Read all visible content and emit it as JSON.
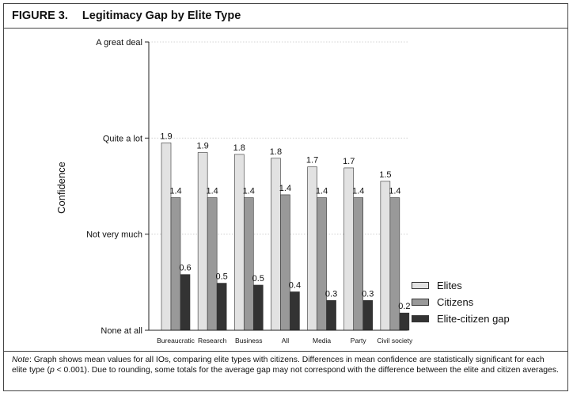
{
  "figure": {
    "label": "FIGURE 3.",
    "title": "Legitimacy Gap by Elite Type"
  },
  "chart_data": {
    "type": "bar",
    "title": "Legitimacy Gap by Elite Type",
    "xlabel": "",
    "ylabel": "Confidence",
    "ylim": [
      0,
      3
    ],
    "y_ticks": [
      {
        "value": 0,
        "label": "None at all"
      },
      {
        "value": 1,
        "label": "Not very much"
      },
      {
        "value": 2,
        "label": "Quite a lot"
      },
      {
        "value": 3,
        "label": "A great deal"
      }
    ],
    "categories": [
      "Bureaucratic",
      "Research",
      "Business",
      "All",
      "Media",
      "Party",
      "Civil society"
    ],
    "series": [
      {
        "name": "Elites",
        "color": "#e2e2e2",
        "values": [
          1.95,
          1.85,
          1.83,
          1.79,
          1.7,
          1.69,
          1.55
        ],
        "labels": [
          "1.9",
          "1.9",
          "1.8",
          "1.8",
          "1.7",
          "1.7",
          "1.5"
        ]
      },
      {
        "name": "Citizens",
        "color": "#999999",
        "values": [
          1.38,
          1.38,
          1.38,
          1.41,
          1.38,
          1.38,
          1.38
        ],
        "labels": [
          "1.4",
          "1.4",
          "1.4",
          "1.4",
          "1.4",
          "1.4",
          "1.4"
        ]
      },
      {
        "name": "Elite-citizen gap",
        "color": "#333333",
        "values": [
          0.58,
          0.49,
          0.47,
          0.4,
          0.31,
          0.31,
          0.18
        ],
        "labels": [
          "0.6",
          "0.5",
          "0.5",
          "0.4",
          "0.3",
          "0.3",
          "0.2"
        ]
      }
    ],
    "grid": true,
    "legend_position": "right"
  },
  "note": {
    "prefix": "Note",
    "text_1": ": Graph shows mean values for all IOs, comparing elite types with citizens. Differences in mean confidence are statistically significant for each elite type (",
    "p_symbol": "p",
    "text_2": " < 0.001). Due to rounding, some totals for the average gap may not correspond with the difference between the elite and citizen averages."
  }
}
